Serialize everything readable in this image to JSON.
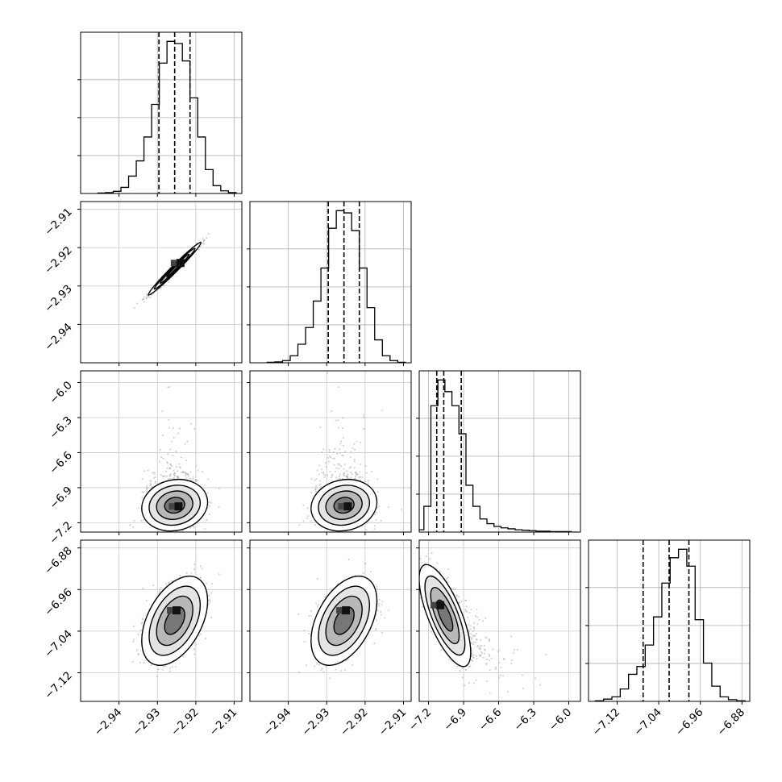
{
  "chart_data": {
    "type": "corner",
    "grid": true,
    "parameters": [
      {
        "range": [
          -2.95,
          -2.908
        ],
        "ticks": [
          -2.94,
          -2.93,
          -2.92,
          -2.91
        ],
        "tick_labels": [
          "−2.94",
          "−2.93",
          "−2.92",
          "−2.91"
        ],
        "quantiles": [
          -2.9296,
          -2.9255,
          -2.9215
        ],
        "histogram": {
          "edges": [
            -2.9455,
            -2.9435,
            -2.9415,
            -2.9395,
            -2.9375,
            -2.9355,
            -2.9335,
            -2.9315,
            -2.9295,
            -2.9275,
            -2.9255,
            -2.9235,
            -2.9215,
            -2.9195,
            -2.9175,
            -2.9155,
            -2.9135,
            -2.9115,
            -2.9095
          ],
          "counts": [
            1,
            2,
            5,
            14,
            40,
            75,
            130,
            205,
            300,
            350,
            345,
            305,
            220,
            130,
            55,
            18,
            6,
            2
          ]
        }
      },
      {
        "range": [
          -2.95,
          -2.908
        ],
        "ticks": [
          -2.94,
          -2.93,
          -2.92,
          -2.91
        ],
        "tick_labels": [
          "−2.94",
          "−2.93",
          "−2.92",
          "−2.91"
        ],
        "quantiles": [
          -2.9296,
          -2.9255,
          -2.9215
        ],
        "histogram": {
          "edges": [
            -2.9455,
            -2.9435,
            -2.9415,
            -2.9395,
            -2.9375,
            -2.9355,
            -2.9335,
            -2.9315,
            -2.9295,
            -2.9275,
            -2.9255,
            -2.9235,
            -2.9215,
            -2.9195,
            -2.9175,
            -2.9155,
            -2.9135,
            -2.9115,
            -2.9095
          ],
          "counts": [
            1,
            2,
            5,
            16,
            42,
            80,
            140,
            215,
            305,
            345,
            340,
            300,
            215,
            125,
            52,
            16,
            5,
            1
          ]
        }
      },
      {
        "range": [
          -7.28,
          -5.9
        ],
        "ticks": [
          -7.2,
          -6.9,
          -6.6,
          -6.3,
          -6.0
        ],
        "tick_labels": [
          "−7.2",
          "−6.9",
          "−6.6",
          "−6.3",
          "−6.0"
        ],
        "quantiles": [
          -7.13,
          -7.07,
          -6.92
        ],
        "histogram": {
          "edges": [
            -7.3,
            -7.24,
            -7.18,
            -7.12,
            -7.06,
            -7.0,
            -6.94,
            -6.88,
            -6.82,
            -6.76,
            -6.7,
            -6.64,
            -6.58,
            -6.52,
            -6.46,
            -6.4,
            -6.34,
            -6.28,
            -6.22,
            -6.16,
            -6.1,
            -6.04,
            -5.98,
            -5.92
          ],
          "counts": [
            5,
            55,
            270,
            325,
            300,
            270,
            210,
            100,
            55,
            28,
            18,
            12,
            9,
            7,
            5,
            4,
            3,
            2,
            2,
            1,
            1,
            1,
            0
          ]
        }
      },
      {
        "range": [
          -7.175,
          -6.865
        ],
        "ticks": [
          -7.12,
          -7.04,
          -6.96,
          -6.88
        ],
        "tick_labels": [
          "−7.12",
          "−7.04",
          "−6.96",
          "−6.88"
        ],
        "quantiles": [
          -7.07,
          -7.02,
          -6.982
        ],
        "histogram": {
          "edges": [
            -7.162,
            -7.146,
            -7.13,
            -7.114,
            -7.098,
            -7.082,
            -7.066,
            -7.05,
            -7.034,
            -7.018,
            -7.002,
            -6.986,
            -6.97,
            -6.954,
            -6.938,
            -6.922,
            -6.906,
            -6.89,
            -6.874
          ],
          "counts": [
            1,
            4,
            8,
            22,
            48,
            62,
            100,
            150,
            210,
            255,
            270,
            240,
            145,
            68,
            27,
            8,
            3,
            1
          ]
        }
      }
    ],
    "pairs": [
      {
        "row": 1,
        "col": 0,
        "x_mean": -2.9255,
        "y_mean": -2.9255,
        "x_sd": 0.0028,
        "y_sd": 0.0028,
        "corr": 0.985,
        "peak": [
          -2.924,
          -2.924
        ]
      },
      {
        "row": 2,
        "col": 0,
        "x_mean": -2.9255,
        "y_mean": -7.05,
        "x_sd": 0.0035,
        "y_sd": 0.09,
        "corr": 0.12,
        "peak": [
          -2.9245,
          -7.06
        ]
      },
      {
        "row": 2,
        "col": 1,
        "x_mean": -2.9255,
        "y_mean": -7.05,
        "x_sd": 0.0035,
        "y_sd": 0.09,
        "corr": 0.12,
        "peak": [
          -2.9245,
          -7.06
        ]
      },
      {
        "row": 3,
        "col": 0,
        "x_mean": -2.9255,
        "y_mean": -7.02,
        "x_sd": 0.0035,
        "y_sd": 0.035,
        "corr": 0.45,
        "peak": [
          -2.925,
          -7.0
        ]
      },
      {
        "row": 3,
        "col": 1,
        "x_mean": -2.9255,
        "y_mean": -7.02,
        "x_sd": 0.0035,
        "y_sd": 0.035,
        "corr": 0.45,
        "peak": [
          -2.925,
          -7.0
        ]
      },
      {
        "row": 3,
        "col": 2,
        "x_mean": -7.06,
        "y_mean": -7.01,
        "x_sd": 0.09,
        "y_sd": 0.04,
        "corr": -0.72,
        "peak": [
          -7.1,
          -6.99
        ]
      }
    ]
  }
}
